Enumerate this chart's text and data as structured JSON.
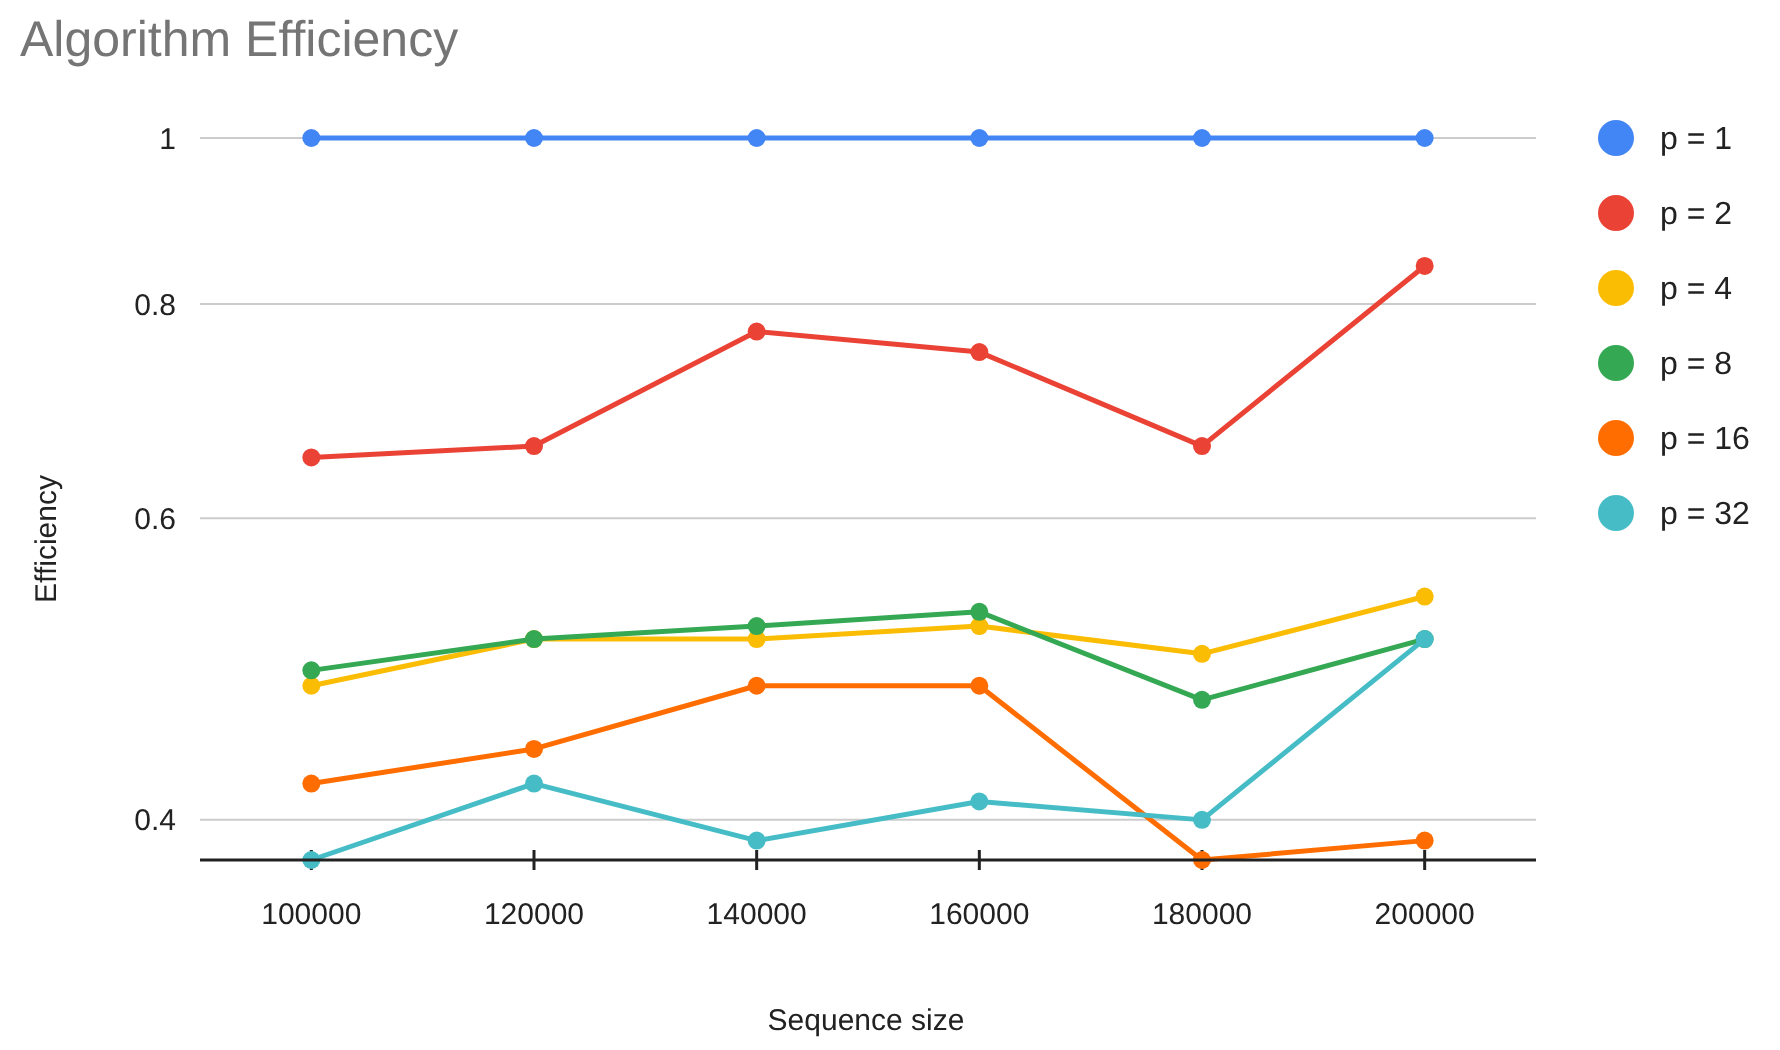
{
  "chart_data": {
    "type": "line",
    "title": "Algorithm Efficiency",
    "xlabel": "Sequence size",
    "ylabel": "Efficiency",
    "x": [
      100000,
      120000,
      140000,
      160000,
      180000,
      200000
    ],
    "xlim": [
      90000,
      210000
    ],
    "xticks": [
      100000,
      120000,
      140000,
      160000,
      180000,
      200000
    ],
    "ylim": [
      0.379,
      1
    ],
    "yticks": [
      0.4,
      0.6,
      0.8,
      1
    ],
    "log": true,
    "grid": "y",
    "legend": "right",
    "marker": "circle",
    "line_style": "solid",
    "series": [
      {
        "name": "p = 1",
        "color": "#4285f4",
        "values": [
          1,
          1,
          1,
          1,
          1,
          1
        ]
      },
      {
        "name": "p = 2",
        "color": "#ea4335",
        "values": [
          0.651,
          0.661,
          0.771,
          0.75,
          0.661,
          0.842
        ]
      },
      {
        "name": "p = 4",
        "color": "#fbbc04",
        "values": [
          0.479,
          0.51,
          0.51,
          0.519,
          0.5,
          0.54
        ]
      },
      {
        "name": "p = 8",
        "color": "#34a853",
        "values": [
          0.489,
          0.51,
          0.519,
          0.529,
          0.47,
          0.51
        ]
      },
      {
        "name": "p = 16",
        "color": "#ff6d01",
        "values": [
          0.42,
          0.44,
          0.479,
          0.479,
          0.379,
          0.389
        ]
      },
      {
        "name": "p = 32",
        "color": "#46bdc6",
        "values": [
          0.379,
          0.42,
          0.389,
          0.41,
          0.4,
          0.51
        ]
      }
    ]
  }
}
